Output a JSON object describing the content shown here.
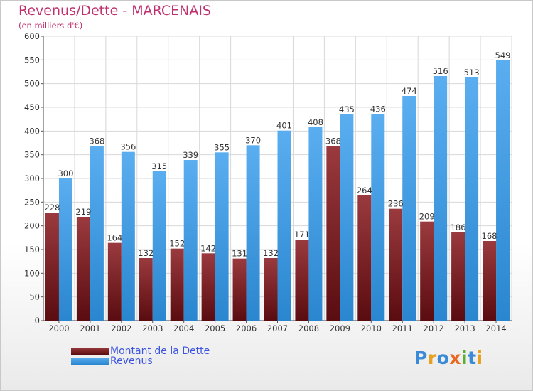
{
  "chart_title": "Revenus/Dette - MARCENAIS",
  "chart_subtitle": "(en milliers d'€)",
  "logo_text": "Proxiti",
  "colors": {
    "debt": "#7a1e22",
    "revenue": "#4ea4e6",
    "title": "#c0306f",
    "legend_text": "#3c54e0"
  },
  "chart_data": {
    "type": "bar",
    "title": "Revenus/Dette - MARCENAIS",
    "subtitle": "(en milliers d'€)",
    "categories": [
      "2000",
      "2001",
      "2002",
      "2003",
      "2004",
      "2005",
      "2006",
      "2007",
      "2008",
      "2009",
      "2010",
      "2011",
      "2012",
      "2013",
      "2014"
    ],
    "series": [
      {
        "name": "Montant de la Dette",
        "values": [
          228,
          219,
          164,
          132,
          152,
          142,
          131,
          132,
          171,
          368,
          264,
          236,
          209,
          186,
          168
        ]
      },
      {
        "name": "Revenus",
        "values": [
          300,
          368,
          356,
          315,
          339,
          355,
          370,
          401,
          408,
          435,
          436,
          474,
          516,
          513,
          549
        ]
      }
    ],
    "ylim": [
      0,
      600
    ],
    "yticks": [
      0,
      50,
      100,
      150,
      200,
      250,
      300,
      350,
      400,
      450,
      500,
      550,
      600
    ],
    "grid": true,
    "legend_position": "bottom-left"
  }
}
